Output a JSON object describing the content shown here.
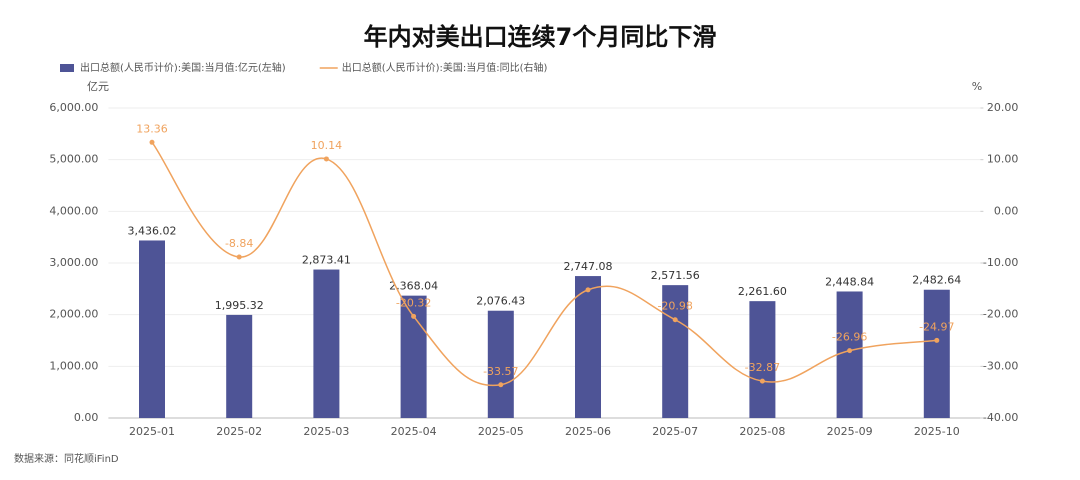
{
  "chart_data": {
    "type": "bar_line",
    "title": "年内对美出口连续7个月同比下滑",
    "source": "数据来源：同花顺iFinD",
    "y_unit": "亿元",
    "y2_unit": "%",
    "categories": [
      "2025-01",
      "2025-02",
      "2025-03",
      "2025-04",
      "2025-05",
      "2025-06",
      "2025-07",
      "2025-08",
      "2025-09",
      "2025-10"
    ],
    "series": [
      {
        "name": "出口总额(人民币计价):美国:当月值:亿元(左轴)",
        "type": "bar",
        "color": "#4e5496",
        "values": [
          3436.02,
          1995.32,
          2873.41,
          2368.04,
          2076.43,
          2747.08,
          2571.56,
          2261.6,
          2448.84,
          2482.64
        ],
        "value_labels": [
          "3,436.02",
          "1,995.32",
          "2,873.41",
          "2,368.04",
          "2,076.43",
          "2,747.08",
          "2,571.56",
          "2,261.60",
          "2,448.84",
          "2,482.64"
        ]
      },
      {
        "name": "出口总额(人民币计价):美国:当月值:同比(右轴)",
        "type": "line",
        "axis": "y2",
        "color": "#f0a35e",
        "values": [
          13.36,
          -8.84,
          10.14,
          -20.32,
          -33.57,
          -15.2,
          -20.98,
          -32.87,
          -26.96,
          -24.97
        ],
        "value_labels": [
          "13.36",
          "-8.84",
          "10.14",
          "-20.32",
          "-33.57",
          null,
          "-20.98",
          "-32.87",
          "-26.96",
          "-24.97"
        ]
      }
    ],
    "ylim": [
      0,
      6000
    ],
    "yticks": [
      {
        "value": 0,
        "label": "0.00"
      },
      {
        "value": 1000,
        "label": "1,000.00"
      },
      {
        "value": 2000,
        "label": "2,000.00"
      },
      {
        "value": 3000,
        "label": "3,000.00"
      },
      {
        "value": 4000,
        "label": "4,000.00"
      },
      {
        "value": 5000,
        "label": "5,000.00"
      },
      {
        "value": 6000,
        "label": "6,000.00"
      }
    ],
    "y2lim": [
      -40,
      20
    ],
    "y2ticks": [
      {
        "value": -40,
        "label": "-40.00"
      },
      {
        "value": -30,
        "label": "-30.00"
      },
      {
        "value": -20,
        "label": "-20.00"
      },
      {
        "value": -10,
        "label": "-10.00"
      },
      {
        "value": 0,
        "label": "0.00"
      },
      {
        "value": 10,
        "label": "10.00"
      },
      {
        "value": 20,
        "label": "20.00"
      }
    ],
    "grid": true
  }
}
